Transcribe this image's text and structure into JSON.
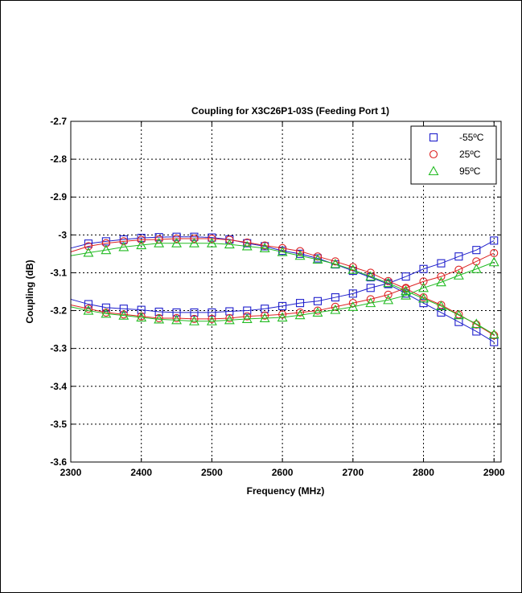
{
  "chart_data": {
    "type": "line",
    "title": "Coupling for X3C26P1-03S (Feeding Port 1)",
    "xlabel": "Frequency (MHz)",
    "ylabel": "Coupling (dB)",
    "xlim": [
      2300,
      2910
    ],
    "ylim": [
      -3.6,
      -2.7
    ],
    "xticks": [
      "2300",
      "2400",
      "2500",
      "2600",
      "2700",
      "2800",
      "2900"
    ],
    "yticks": [
      "-2.7",
      "-2.8",
      "-2.9",
      "-3",
      "-3.1",
      "-3.2",
      "-3.3",
      "-3.4",
      "-3.5",
      "-3.6"
    ],
    "grid": "dotted",
    "legend_position": "top-right",
    "x": [
      2300,
      2325,
      2350,
      2375,
      2400,
      2425,
      2450,
      2475,
      2500,
      2525,
      2550,
      2575,
      2600,
      2625,
      2650,
      2675,
      2700,
      2725,
      2750,
      2775,
      2800,
      2825,
      2850,
      2875,
      2900
    ],
    "series": [
      {
        "name": "-55ºC",
        "color": "#1f1fcc",
        "marker": "square",
        "curves": [
          [
            -3.035,
            -3.023,
            -3.017,
            -3.012,
            -3.008,
            -3.006,
            -3.005,
            -3.005,
            -3.007,
            -3.012,
            -3.022,
            -3.03,
            -3.042,
            -3.05,
            -3.062,
            -3.078,
            -3.095,
            -3.112,
            -3.13,
            -3.155,
            -3.18,
            -3.205,
            -3.23,
            -3.255,
            -3.283
          ],
          [
            -3.17,
            -3.183,
            -3.192,
            -3.195,
            -3.198,
            -3.203,
            -3.205,
            -3.205,
            -3.205,
            -3.202,
            -3.2,
            -3.195,
            -3.188,
            -3.18,
            -3.175,
            -3.165,
            -3.155,
            -3.14,
            -3.128,
            -3.11,
            -3.09,
            -3.075,
            -3.057,
            -3.04,
            -3.015
          ]
        ]
      },
      {
        "name": "25ºC",
        "color": "#dd2222",
        "marker": "circle",
        "curves": [
          [
            -3.045,
            -3.03,
            -3.022,
            -3.017,
            -3.013,
            -3.012,
            -3.01,
            -3.01,
            -3.01,
            -3.013,
            -3.02,
            -3.028,
            -3.035,
            -3.043,
            -3.057,
            -3.07,
            -3.085,
            -3.1,
            -3.122,
            -3.142,
            -3.165,
            -3.185,
            -3.21,
            -3.237,
            -3.265
          ],
          [
            -3.185,
            -3.195,
            -3.205,
            -3.21,
            -3.215,
            -3.22,
            -3.22,
            -3.222,
            -3.222,
            -3.22,
            -3.215,
            -3.213,
            -3.21,
            -3.205,
            -3.2,
            -3.19,
            -3.18,
            -3.17,
            -3.158,
            -3.14,
            -3.123,
            -3.11,
            -3.092,
            -3.07,
            -3.048
          ]
        ]
      },
      {
        "name": "95ºC",
        "color": "#22bb22",
        "marker": "triangle",
        "curves": [
          [
            -3.055,
            -3.047,
            -3.04,
            -3.032,
            -3.027,
            -3.022,
            -3.022,
            -3.022,
            -3.022,
            -3.025,
            -3.03,
            -3.035,
            -3.045,
            -3.055,
            -3.065,
            -3.077,
            -3.092,
            -3.11,
            -3.127,
            -3.148,
            -3.168,
            -3.188,
            -3.212,
            -3.235,
            -3.263
          ],
          [
            -3.19,
            -3.2,
            -3.208,
            -3.213,
            -3.218,
            -3.223,
            -3.225,
            -3.228,
            -3.228,
            -3.225,
            -3.222,
            -3.22,
            -3.218,
            -3.212,
            -3.205,
            -3.198,
            -3.19,
            -3.18,
            -3.172,
            -3.16,
            -3.14,
            -3.125,
            -3.107,
            -3.09,
            -3.072
          ]
        ]
      }
    ]
  }
}
